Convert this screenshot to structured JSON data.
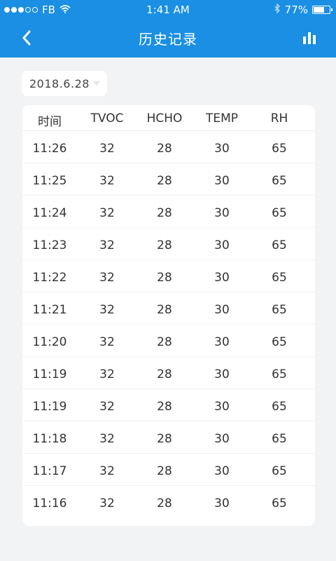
{
  "status_bar": {
    "carrier": "FB",
    "time": "1:41 AM",
    "battery": "77%",
    "battery_level": 0.77
  },
  "nav": {
    "title": "历史记录",
    "back_icon": "chevron-left-icon",
    "chart_icon": "bar-chart-icon"
  },
  "date_select": {
    "value": "2018.6.28"
  },
  "table": {
    "headers": [
      "时间",
      "TVOC",
      "HCHO",
      "TEMP",
      "RH"
    ],
    "rows": [
      [
        "11:26",
        "32",
        "28",
        "30",
        "65"
      ],
      [
        "11:25",
        "32",
        "28",
        "30",
        "65"
      ],
      [
        "11:24",
        "32",
        "28",
        "30",
        "65"
      ],
      [
        "11:23",
        "32",
        "28",
        "30",
        "65"
      ],
      [
        "11:22",
        "32",
        "28",
        "30",
        "65"
      ],
      [
        "11:21",
        "32",
        "28",
        "30",
        "65"
      ],
      [
        "11:20",
        "32",
        "28",
        "30",
        "65"
      ],
      [
        "11:19",
        "32",
        "28",
        "30",
        "65"
      ],
      [
        "11:19",
        "32",
        "28",
        "30",
        "65"
      ],
      [
        "11:18",
        "32",
        "28",
        "30",
        "65"
      ],
      [
        "11:17",
        "32",
        "28",
        "30",
        "65"
      ],
      [
        "11:16",
        "32",
        "28",
        "30",
        "65"
      ]
    ]
  },
  "colors": {
    "accent": "#1a8fe3",
    "background": "#f2f3f5",
    "card": "#ffffff",
    "text": "#333333"
  }
}
